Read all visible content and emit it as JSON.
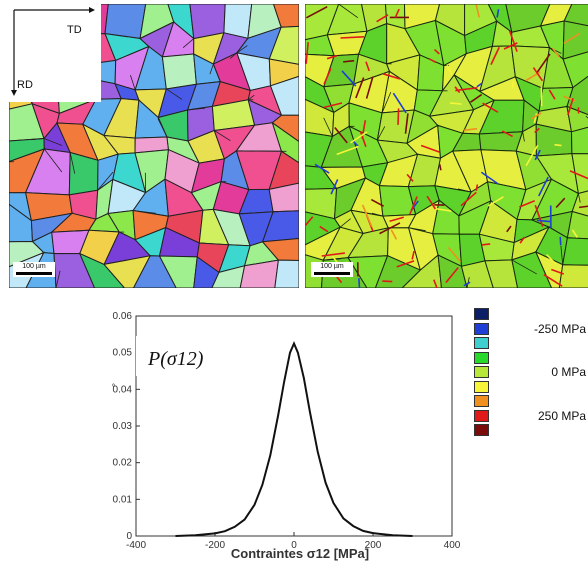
{
  "maps": {
    "left": {
      "type": "orientation-map",
      "axes": {
        "horizontal": "TD",
        "vertical": "RD"
      },
      "scale_bar": "100 µm"
    },
    "right": {
      "type": "stress-map",
      "scale_bar": "100 µm"
    }
  },
  "legend": {
    "colors": [
      "#0b1f66",
      "#1f3fd6",
      "#3fcfcf",
      "#28d82a",
      "#b8e63a",
      "#f6f53a",
      "#f09020",
      "#e01a1a",
      "#7a0c0c"
    ],
    "labels": [
      {
        "text": "-250 MPa",
        "at_swatch": 1
      },
      {
        "text": "0 MPa",
        "at_swatch": 4
      },
      {
        "text": "250 MPa",
        "at_swatch": 7
      }
    ]
  },
  "chart_data": {
    "type": "line",
    "title": "",
    "annotation": "P(σ12)",
    "xlabel": "Contraintes σ12 [MPa]",
    "ylabel": "",
    "xlim": [
      -400,
      400
    ],
    "ylim": [
      0,
      0.06
    ],
    "x_ticks": [
      -400,
      -200,
      0,
      200,
      400
    ],
    "y_ticks": [
      0,
      0.01,
      0.02,
      0.03,
      0.04,
      0.05,
      0.06
    ],
    "y_tick_labels": [
      "0",
      "0.01",
      "0.02",
      "0.03",
      "0.04",
      "0.05",
      "0.06"
    ],
    "grid": false,
    "series": [
      {
        "x": [
          -300,
          -250,
          -200,
          -175,
          -150,
          -125,
          -100,
          -80,
          -60,
          -40,
          -25,
          -10,
          0,
          10,
          25,
          40,
          60,
          80,
          100,
          125,
          150,
          175,
          200,
          250,
          300
        ],
        "y": [
          0.0,
          0.0002,
          0.0007,
          0.0013,
          0.0025,
          0.0045,
          0.0085,
          0.014,
          0.022,
          0.033,
          0.042,
          0.05,
          0.0525,
          0.05,
          0.043,
          0.034,
          0.023,
          0.0145,
          0.009,
          0.0048,
          0.0027,
          0.0014,
          0.0008,
          0.0002,
          0.0
        ]
      }
    ]
  }
}
